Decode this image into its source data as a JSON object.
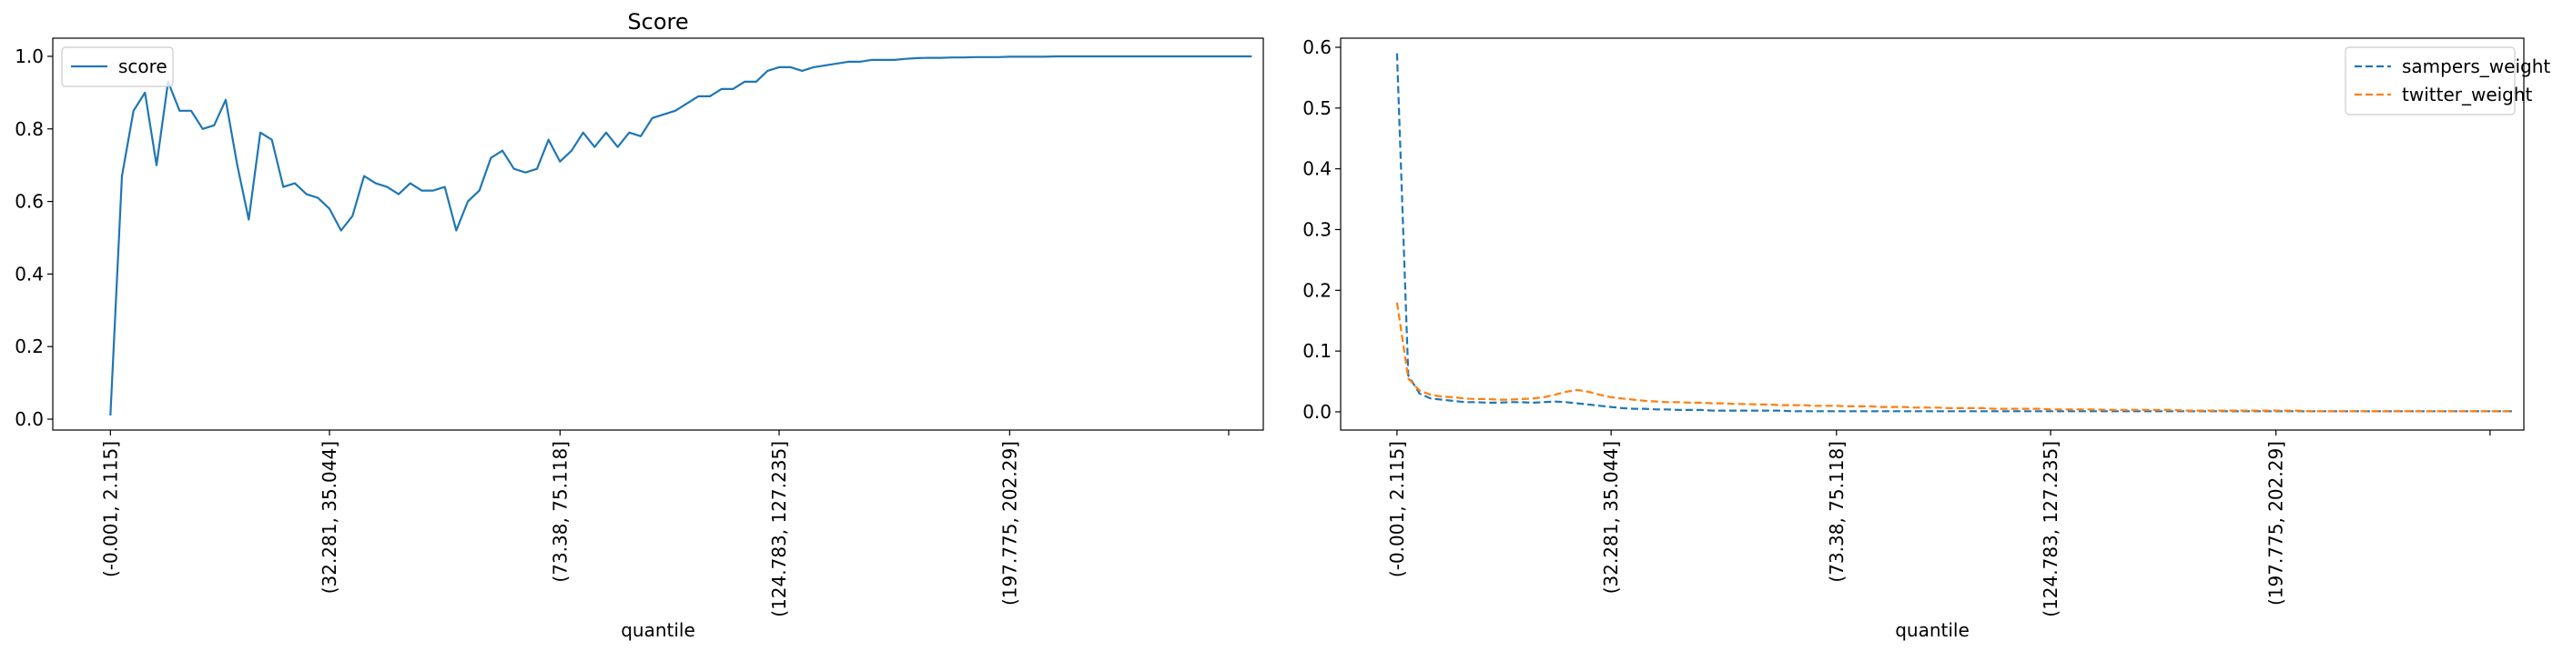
{
  "chart_data": [
    {
      "type": "line",
      "title": "Score",
      "xlabel": "quantile",
      "ylabel": "",
      "xlim": [
        -5,
        100
      ],
      "ylim": [
        -0.03,
        1.05
      ],
      "yticks": [
        0.0,
        0.2,
        0.4,
        0.6,
        0.8,
        1.0
      ],
      "ytick_labels": [
        "0.0",
        "0.2",
        "0.4",
        "0.6",
        "0.8",
        "1.0"
      ],
      "xticks": [
        0,
        19,
        39,
        58,
        78,
        97
      ],
      "xtick_labels": [
        "(-0.001, 2.115]",
        "(32.281, 35.044]",
        "(73.38, 75.118]",
        "(124.783, 127.235]",
        "(197.775, 202.29]",
        ""
      ],
      "legend": "upper left",
      "grid": false,
      "series": [
        {
          "name": "score",
          "color": "#1f77b4",
          "dash": "solid",
          "x": [
            0,
            1,
            2,
            3,
            4,
            5,
            6,
            7,
            8,
            9,
            10,
            11,
            12,
            13,
            14,
            15,
            16,
            17,
            18,
            19,
            20,
            21,
            22,
            23,
            24,
            25,
            26,
            27,
            28,
            29,
            30,
            31,
            32,
            33,
            34,
            35,
            36,
            37,
            38,
            39,
            40,
            41,
            42,
            43,
            44,
            45,
            46,
            47,
            48,
            49,
            50,
            51,
            52,
            53,
            54,
            55,
            56,
            57,
            58,
            59,
            60,
            61,
            62,
            63,
            64,
            65,
            66,
            67,
            68,
            69,
            70,
            71,
            72,
            73,
            74,
            75,
            76,
            77,
            78,
            79,
            80,
            81,
            82,
            83,
            84,
            85,
            86,
            87,
            88,
            89,
            90,
            91,
            92,
            93,
            94,
            95,
            96,
            97,
            98,
            99
          ],
          "y": [
            0.01,
            0.67,
            0.85,
            0.9,
            0.7,
            0.93,
            0.85,
            0.85,
            0.8,
            0.81,
            0.88,
            0.7,
            0.55,
            0.79,
            0.77,
            0.64,
            0.65,
            0.62,
            0.61,
            0.58,
            0.52,
            0.56,
            0.67,
            0.65,
            0.64,
            0.62,
            0.65,
            0.63,
            0.63,
            0.64,
            0.52,
            0.6,
            0.63,
            0.72,
            0.74,
            0.69,
            0.68,
            0.69,
            0.77,
            0.71,
            0.74,
            0.79,
            0.75,
            0.79,
            0.75,
            0.79,
            0.78,
            0.83,
            0.84,
            0.85,
            0.87,
            0.89,
            0.89,
            0.91,
            0.91,
            0.93,
            0.93,
            0.96,
            0.97,
            0.97,
            0.96,
            0.97,
            0.975,
            0.98,
            0.985,
            0.985,
            0.99,
            0.99,
            0.99,
            0.993,
            0.995,
            0.996,
            0.996,
            0.997,
            0.997,
            0.998,
            0.998,
            0.998,
            0.999,
            0.999,
            0.999,
            0.999,
            1.0,
            1.0,
            1.0,
            1.0,
            1.0,
            1.0,
            1.0,
            1.0,
            1.0,
            1.0,
            1.0,
            1.0,
            1.0,
            1.0,
            1.0,
            1.0,
            1.0,
            1.0
          ]
        }
      ]
    },
    {
      "type": "line",
      "title": "",
      "xlabel": "quantile",
      "ylabel": "",
      "xlim": [
        -5,
        100
      ],
      "ylim": [
        -0.03,
        0.615
      ],
      "yticks": [
        0.0,
        0.1,
        0.2,
        0.3,
        0.4,
        0.5,
        0.6
      ],
      "ytick_labels": [
        "0.0",
        "0.1",
        "0.2",
        "0.3",
        "0.4",
        "0.5",
        "0.6"
      ],
      "xticks": [
        0,
        19,
        39,
        58,
        78,
        97
      ],
      "xtick_labels": [
        "(-0.001, 2.115]",
        "(32.281, 35.044]",
        "(73.38, 75.118]",
        "(124.783, 127.235]",
        "(197.775, 202.29]",
        ""
      ],
      "legend": "upper right",
      "grid": false,
      "series": [
        {
          "name": "sampers_weight",
          "color": "#1f77b4",
          "dash": "dashed",
          "x": [
            0,
            1,
            2,
            3,
            4,
            5,
            6,
            7,
            8,
            9,
            10,
            11,
            12,
            13,
            14,
            15,
            16,
            17,
            18,
            19,
            20,
            21,
            22,
            23,
            24,
            25,
            26,
            27,
            28,
            29,
            30,
            31,
            32,
            33,
            34,
            35,
            36,
            37,
            38,
            39,
            40,
            41,
            42,
            43,
            44,
            45,
            46,
            47,
            48,
            49,
            50,
            51,
            52,
            53,
            54,
            55,
            56,
            57,
            58,
            59,
            60,
            61,
            62,
            63,
            64,
            65,
            66,
            67,
            68,
            69,
            70,
            71,
            72,
            73,
            74,
            75,
            76,
            77,
            78,
            79,
            80,
            81,
            82,
            83,
            84,
            85,
            86,
            87,
            88,
            89,
            90,
            91,
            92,
            93,
            94,
            95,
            96,
            97,
            98,
            99
          ],
          "y": [
            0.59,
            0.06,
            0.03,
            0.022,
            0.02,
            0.018,
            0.016,
            0.016,
            0.015,
            0.015,
            0.016,
            0.016,
            0.015,
            0.016,
            0.017,
            0.016,
            0.014,
            0.012,
            0.01,
            0.008,
            0.006,
            0.005,
            0.005,
            0.004,
            0.004,
            0.003,
            0.003,
            0.003,
            0.002,
            0.002,
            0.002,
            0.002,
            0.002,
            0.002,
            0.002,
            0.001,
            0.001,
            0.001,
            0.001,
            0.001,
            0.001,
            0.001,
            0.001,
            0.001,
            0.001,
            0.001,
            0.001,
            0.001,
            0.001,
            0.001,
            0.001,
            0.001,
            0.001,
            0.001,
            0.001,
            0.001,
            0.001,
            0.001,
            0.001,
            0.001,
            0.001,
            0.001,
            0.001,
            0.001,
            0.001,
            0.001,
            0.001,
            0.001,
            0.001,
            0.001,
            0.001,
            0.001,
            0.001,
            0.001,
            0.001,
            0.001,
            0.001,
            0.001,
            0.001,
            0.001,
            0.001,
            0.001,
            0.001,
            0.001,
            0.001,
            0.001,
            0.001,
            0.001,
            0.001,
            0.001,
            0.001,
            0.001,
            0.001,
            0.001,
            0.001,
            0.001,
            0.001,
            0.001,
            0.001,
            0.001
          ]
        },
        {
          "name": "twitter_weight",
          "color": "#ff7f0e",
          "dash": "dashed",
          "x": [
            0,
            1,
            2,
            3,
            4,
            5,
            6,
            7,
            8,
            9,
            10,
            11,
            12,
            13,
            14,
            15,
            16,
            17,
            18,
            19,
            20,
            21,
            22,
            23,
            24,
            25,
            26,
            27,
            28,
            29,
            30,
            31,
            32,
            33,
            34,
            35,
            36,
            37,
            38,
            39,
            40,
            41,
            42,
            43,
            44,
            45,
            46,
            47,
            48,
            49,
            50,
            51,
            52,
            53,
            54,
            55,
            56,
            57,
            58,
            59,
            60,
            61,
            62,
            63,
            64,
            65,
            66,
            67,
            68,
            69,
            70,
            71,
            72,
            73,
            74,
            75,
            76,
            77,
            78,
            79,
            80,
            81,
            82,
            83,
            84,
            85,
            86,
            87,
            88,
            89,
            90,
            91,
            92,
            93,
            94,
            95,
            96,
            97,
            98,
            99
          ],
          "y": [
            0.18,
            0.055,
            0.035,
            0.028,
            0.025,
            0.024,
            0.022,
            0.021,
            0.021,
            0.02,
            0.02,
            0.021,
            0.022,
            0.024,
            0.028,
            0.033,
            0.036,
            0.033,
            0.028,
            0.024,
            0.022,
            0.02,
            0.018,
            0.017,
            0.016,
            0.016,
            0.015,
            0.015,
            0.014,
            0.014,
            0.013,
            0.013,
            0.012,
            0.012,
            0.011,
            0.011,
            0.011,
            0.01,
            0.01,
            0.01,
            0.009,
            0.009,
            0.009,
            0.008,
            0.008,
            0.008,
            0.007,
            0.007,
            0.007,
            0.006,
            0.006,
            0.006,
            0.006,
            0.005,
            0.005,
            0.005,
            0.005,
            0.005,
            0.004,
            0.004,
            0.004,
            0.004,
            0.004,
            0.003,
            0.003,
            0.003,
            0.003,
            0.003,
            0.003,
            0.003,
            0.002,
            0.002,
            0.002,
            0.002,
            0.002,
            0.002,
            0.002,
            0.002,
            0.002,
            0.002,
            0.002,
            0.001,
            0.001,
            0.001,
            0.001,
            0.001,
            0.001,
            0.001,
            0.001,
            0.001,
            0.001,
            0.001,
            0.001,
            0.001,
            0.001,
            0.001,
            0.001,
            0.001,
            0.001,
            0.001
          ]
        }
      ]
    }
  ]
}
